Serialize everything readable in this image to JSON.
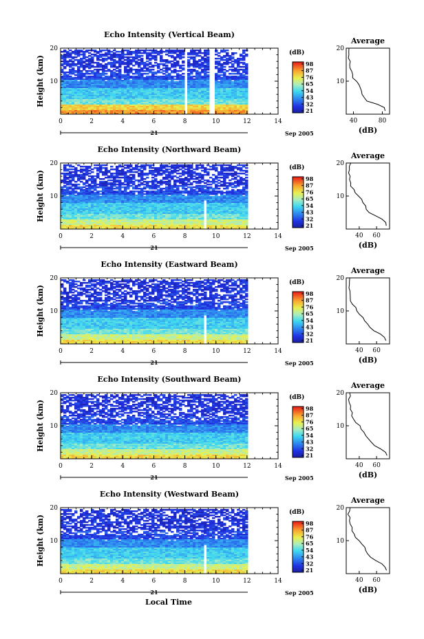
{
  "chart_data": [
    {
      "type": "heatmap",
      "title": "Echo Intensity (Vertical Beam)",
      "ylabel": "Height (km)",
      "xlim": [
        0,
        14
      ],
      "ylim": [
        0,
        20
      ],
      "x_ticks": [
        "0",
        "2",
        "4",
        "6",
        "8",
        "10",
        "12",
        "14"
      ],
      "y_ticks": [
        "20",
        "10"
      ],
      "date_label": "21",
      "date_suffix": "Sep 2005",
      "colorbar": {
        "unit": "(dB)",
        "ticks": [
          "98",
          "87",
          "76",
          "65",
          "54",
          "43",
          "32",
          "21"
        ]
      },
      "data_end_hour": 12,
      "gaps": [
        [
          7.95,
          8.15,
          0,
          20
        ],
        [
          9.5,
          9.8,
          0,
          20
        ]
      ],
      "average": {
        "title": "Average",
        "xlabel": "(dB)",
        "x_ticks": [
          "40",
          "80"
        ],
        "xlim": [
          30,
          90
        ],
        "y_ticks": [
          "20",
          "10"
        ],
        "profile": [
          [
            85,
            1
          ],
          [
            82,
            2
          ],
          [
            72,
            3
          ],
          [
            58,
            4
          ],
          [
            55,
            5
          ],
          [
            53,
            6
          ],
          [
            52,
            7
          ],
          [
            50,
            8
          ],
          [
            48,
            9
          ],
          [
            43,
            10
          ],
          [
            40,
            11
          ],
          [
            38,
            12
          ],
          [
            37,
            13
          ],
          [
            36,
            14
          ],
          [
            35,
            15
          ],
          [
            36,
            16
          ],
          [
            34,
            17
          ],
          [
            35,
            18
          ],
          [
            33,
            19
          ],
          [
            35,
            20
          ]
        ]
      }
    },
    {
      "type": "heatmap",
      "title": "Echo Intensity (Northward Beam)",
      "ylabel": "Height (km)",
      "xlim": [
        0,
        14
      ],
      "ylim": [
        0,
        20
      ],
      "x_ticks": [
        "0",
        "2",
        "4",
        "6",
        "8",
        "10",
        "12",
        "14"
      ],
      "y_ticks": [
        "20",
        "10"
      ],
      "date_label": "21",
      "date_suffix": "Sep 2005",
      "colorbar": {
        "unit": "(dB)",
        "ticks": [
          "98",
          "87",
          "76",
          "65",
          "54",
          "43",
          "32",
          "21"
        ]
      },
      "data_end_hour": 12,
      "gaps": [
        [
          9.1,
          9.3,
          0,
          9
        ]
      ],
      "average": {
        "title": "Average",
        "xlabel": "(dB)",
        "x_ticks": [
          "40",
          "60"
        ],
        "xlim": [
          25,
          75
        ],
        "y_ticks": [
          "20",
          "10"
        ],
        "profile": [
          [
            72,
            1
          ],
          [
            70,
            2
          ],
          [
            66,
            3
          ],
          [
            58,
            4
          ],
          [
            52,
            5
          ],
          [
            49,
            6
          ],
          [
            47,
            7
          ],
          [
            45,
            8
          ],
          [
            42,
            9
          ],
          [
            38,
            10
          ],
          [
            35,
            11
          ],
          [
            33,
            12
          ],
          [
            31,
            13
          ],
          [
            30,
            14
          ],
          [
            29,
            15
          ],
          [
            30,
            16
          ],
          [
            28,
            17
          ],
          [
            29,
            18
          ],
          [
            28,
            19
          ],
          [
            30,
            20
          ]
        ]
      }
    },
    {
      "type": "heatmap",
      "title": "Echo Intensity (Eastward Beam)",
      "ylabel": "Height (km)",
      "xlim": [
        0,
        14
      ],
      "ylim": [
        0,
        20
      ],
      "x_ticks": [
        "0",
        "2",
        "4",
        "6",
        "8",
        "10",
        "12",
        "14"
      ],
      "y_ticks": [
        "20",
        "10"
      ],
      "date_label": "21",
      "date_suffix": "Sep 2005",
      "colorbar": {
        "unit": "(dB)",
        "ticks": [
          "98",
          "87",
          "76",
          "65",
          "54",
          "43",
          "32",
          "21"
        ]
      },
      "data_end_hour": 12,
      "gaps": [
        [
          9.1,
          9.3,
          0,
          9
        ]
      ],
      "average": {
        "title": "Average",
        "xlabel": "(dB)",
        "x_ticks": [
          "40",
          "60"
        ],
        "xlim": [
          25,
          75
        ],
        "y_ticks": [
          "20",
          "10"
        ],
        "profile": [
          [
            72,
            1
          ],
          [
            70,
            2
          ],
          [
            65,
            3
          ],
          [
            57,
            4
          ],
          [
            52,
            5
          ],
          [
            49,
            6
          ],
          [
            47,
            7
          ],
          [
            45,
            8
          ],
          [
            41,
            9
          ],
          [
            38,
            10
          ],
          [
            35,
            11
          ],
          [
            33,
            12
          ],
          [
            31,
            13
          ],
          [
            30,
            14
          ],
          [
            29,
            15
          ],
          [
            30,
            16
          ],
          [
            28,
            17
          ],
          [
            29,
            18
          ],
          [
            28,
            19
          ],
          [
            30,
            20
          ]
        ]
      }
    },
    {
      "type": "heatmap",
      "title": "Echo Intensity (Southward Beam)",
      "ylabel": "Height (km)",
      "xlim": [
        0,
        14
      ],
      "ylim": [
        0,
        20
      ],
      "x_ticks": [
        "0",
        "2",
        "4",
        "6",
        "8",
        "10",
        "12",
        "14"
      ],
      "y_ticks": [
        "20",
        "10"
      ],
      "date_label": "21",
      "date_suffix": "Sep 2005",
      "colorbar": {
        "unit": "(dB)",
        "ticks": [
          "98",
          "87",
          "76",
          "65",
          "54",
          "43",
          "32",
          "21"
        ]
      },
      "data_end_hour": 12,
      "gaps": [],
      "average": {
        "title": "Average",
        "xlabel": "(dB)",
        "x_ticks": [
          "40",
          "60"
        ],
        "xlim": [
          25,
          75
        ],
        "y_ticks": [
          "20",
          "10"
        ],
        "profile": [
          [
            72,
            1
          ],
          [
            70,
            2
          ],
          [
            64,
            3
          ],
          [
            58,
            4
          ],
          [
            53,
            5
          ],
          [
            50,
            6
          ],
          [
            48,
            7
          ],
          [
            46,
            8
          ],
          [
            43,
            9
          ],
          [
            40,
            10
          ],
          [
            37,
            11
          ],
          [
            34,
            12
          ],
          [
            32,
            13
          ],
          [
            31,
            14
          ],
          [
            30,
            15
          ],
          [
            29,
            16
          ],
          [
            29,
            17
          ],
          [
            28,
            18
          ],
          [
            29,
            19
          ],
          [
            28,
            20
          ]
        ]
      }
    },
    {
      "type": "heatmap",
      "title": "Echo Intensity (Westward Beam)",
      "ylabel": "Height (km)",
      "xlabel": "Local Time",
      "xlim": [
        0,
        14
      ],
      "ylim": [
        0,
        20
      ],
      "x_ticks": [
        "0",
        "2",
        "4",
        "6",
        "8",
        "10",
        "12",
        "14"
      ],
      "y_ticks": [
        "20",
        "10"
      ],
      "date_label": "21",
      "date_suffix": "Sep 2005",
      "colorbar": {
        "unit": "(dB)",
        "ticks": [
          "98",
          "87",
          "76",
          "65",
          "54",
          "43",
          "32",
          "21"
        ]
      },
      "data_end_hour": 12,
      "gaps": [
        [
          9.1,
          9.3,
          0,
          9
        ]
      ],
      "average": {
        "title": "Average",
        "xlabel": "(dB)",
        "x_ticks": [
          "40",
          "60"
        ],
        "xlim": [
          25,
          75
        ],
        "y_ticks": [
          "20",
          "10"
        ],
        "profile": [
          [
            72,
            1
          ],
          [
            70,
            2
          ],
          [
            65,
            3
          ],
          [
            58,
            4
          ],
          [
            53,
            5
          ],
          [
            50,
            6
          ],
          [
            48,
            7
          ],
          [
            46,
            8
          ],
          [
            42,
            9
          ],
          [
            39,
            10
          ],
          [
            36,
            11
          ],
          [
            34,
            12
          ],
          [
            32,
            13
          ],
          [
            31,
            14
          ],
          [
            30,
            15
          ],
          [
            29,
            16
          ],
          [
            30,
            17
          ],
          [
            28,
            18
          ],
          [
            29,
            19
          ],
          [
            30,
            20
          ]
        ]
      }
    }
  ]
}
